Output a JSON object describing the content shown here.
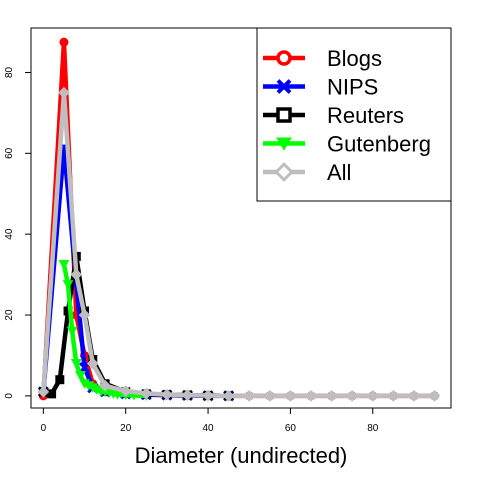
{
  "chart_data": {
    "type": "line",
    "xlabel": "Diameter (undirected)",
    "ylabel": "",
    "xlim": [
      -3,
      99
    ],
    "ylim": [
      -3,
      91
    ],
    "x_ticks": [
      0,
      20,
      40,
      60,
      80
    ],
    "y_ticks": [
      0,
      20,
      40,
      60,
      80
    ],
    "legend_position": "top-right",
    "series": [
      {
        "name": "Blogs",
        "color": "#ff0000",
        "marker": "circle",
        "x": [
          0,
          5,
          8,
          10,
          12,
          15,
          20,
          25,
          30,
          35,
          40,
          45,
          50,
          55,
          60,
          65,
          70,
          75,
          80,
          85,
          90,
          95
        ],
        "y": [
          0,
          87.5,
          20,
          10,
          3,
          1,
          0.5,
          0.3,
          0.2,
          0.1,
          0.1,
          0,
          0,
          0,
          0,
          0,
          0,
          0,
          0,
          0,
          0,
          0
        ]
      },
      {
        "name": "NIPS",
        "color": "#0000ff",
        "marker": "x",
        "x": [
          0,
          5,
          8,
          10,
          12,
          15,
          20,
          25,
          30,
          35,
          40,
          45
        ],
        "y": [
          1,
          61.5,
          28,
          7,
          2,
          1,
          0.5,
          0.3,
          0.2,
          0.1,
          0,
          0
        ]
      },
      {
        "name": "Reuters",
        "color": "#000000",
        "marker": "square",
        "x": [
          0,
          2,
          4,
          6,
          8,
          10,
          12,
          15,
          20,
          25,
          30,
          35,
          40,
          45
        ],
        "y": [
          1,
          0.5,
          4,
          21,
          34.5,
          21,
          9,
          3,
          1,
          0.5,
          0.3,
          0.2,
          0.1,
          0
        ]
      },
      {
        "name": "Gutenberg",
        "color": "#00ff00",
        "marker": "triangle-down",
        "x": [
          5,
          6,
          7,
          8,
          9,
          10,
          11,
          12,
          13,
          14,
          15,
          16,
          17,
          18,
          20,
          22,
          25
        ],
        "y": [
          32.5,
          27.5,
          16,
          8,
          5,
          3,
          2.5,
          2,
          1.5,
          1,
          1,
          0.8,
          0.5,
          0.3,
          0.2,
          0.1,
          0
        ]
      },
      {
        "name": "All",
        "color": "#bebebe",
        "marker": "diamond",
        "x": [
          0,
          5,
          8,
          10,
          12,
          15,
          20,
          25,
          30,
          35,
          40,
          45,
          50,
          55,
          60,
          65,
          70,
          75,
          80,
          85,
          90,
          95
        ],
        "y": [
          1,
          75,
          30,
          20,
          8,
          2.5,
          1.2,
          0.6,
          0.3,
          0.2,
          0.1,
          0,
          0,
          0,
          0,
          0,
          0,
          0,
          0,
          0,
          0,
          0
        ]
      }
    ]
  }
}
